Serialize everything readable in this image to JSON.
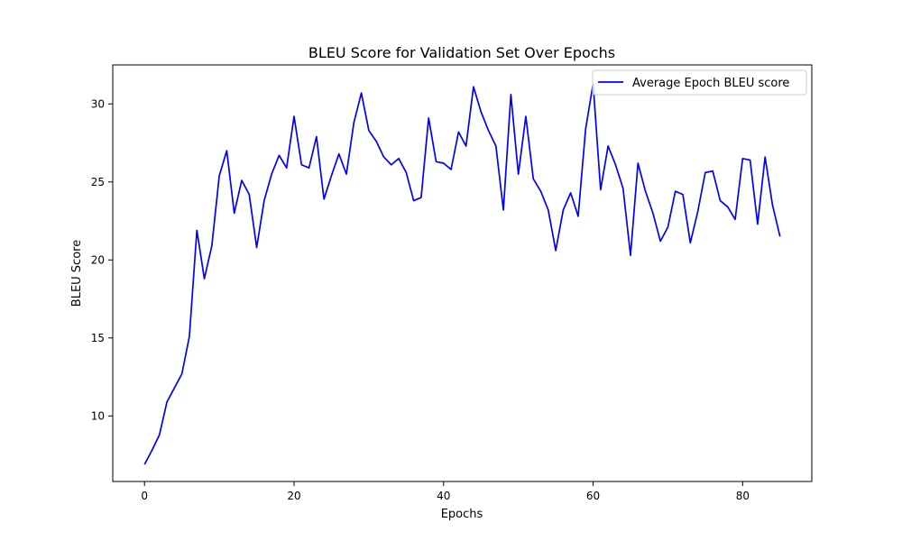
{
  "chart_data": {
    "type": "line",
    "title": "BLEU Score for Validation Set Over Epochs",
    "xlabel": "Epochs",
    "ylabel": "BLEU Score",
    "xlim": [
      -4.25,
      89.25
    ],
    "ylim": [
      5.8,
      32.5
    ],
    "xticks": [
      0,
      20,
      40,
      60,
      80
    ],
    "yticks": [
      10,
      15,
      20,
      25,
      30
    ],
    "grid": false,
    "legend": "top-right",
    "series": [
      {
        "name": "Average Epoch BLEU score",
        "color": "#0000ff",
        "x": [
          0,
          1,
          2,
          3,
          4,
          5,
          6,
          7,
          8,
          9,
          10,
          11,
          12,
          13,
          14,
          15,
          16,
          17,
          18,
          19,
          20,
          21,
          22,
          23,
          24,
          25,
          26,
          27,
          28,
          29,
          30,
          31,
          32,
          33,
          34,
          35,
          36,
          37,
          38,
          39,
          40,
          41,
          42,
          43,
          44,
          45,
          46,
          47,
          48,
          49,
          50,
          51,
          52,
          53,
          54,
          55,
          56,
          57,
          58,
          59,
          60,
          61,
          62,
          63,
          64,
          65,
          66,
          67,
          68,
          69,
          70,
          71,
          72,
          73,
          74,
          75,
          76,
          77,
          78,
          79,
          80,
          81,
          82,
          83,
          84,
          85
        ],
        "values": [
          6.9,
          7.8,
          8.8,
          10.9,
          11.8,
          12.7,
          15.1,
          21.9,
          18.8,
          20.9,
          25.4,
          27.0,
          23.0,
          25.1,
          24.2,
          20.8,
          23.8,
          25.5,
          26.7,
          25.9,
          29.2,
          26.1,
          25.9,
          27.9,
          23.9,
          25.4,
          26.8,
          25.5,
          28.8,
          30.7,
          28.3,
          27.6,
          26.6,
          26.1,
          26.5,
          25.6,
          23.8,
          24.0,
          29.1,
          26.3,
          26.2,
          25.8,
          28.2,
          27.3,
          31.1,
          29.5,
          28.3,
          27.3,
          23.2,
          30.6,
          25.5,
          29.2,
          25.2,
          24.4,
          23.2,
          20.6,
          23.2,
          24.3,
          22.8,
          28.4,
          31.3,
          24.5,
          27.3,
          26.1,
          24.6,
          20.3,
          26.2,
          24.4,
          23.0,
          21.2,
          22.1,
          24.4,
          24.2,
          21.1,
          23.1,
          25.6,
          25.7,
          23.8,
          23.4,
          22.6,
          26.5,
          26.4,
          22.3,
          26.6,
          23.5,
          21.5
        ]
      }
    ]
  }
}
